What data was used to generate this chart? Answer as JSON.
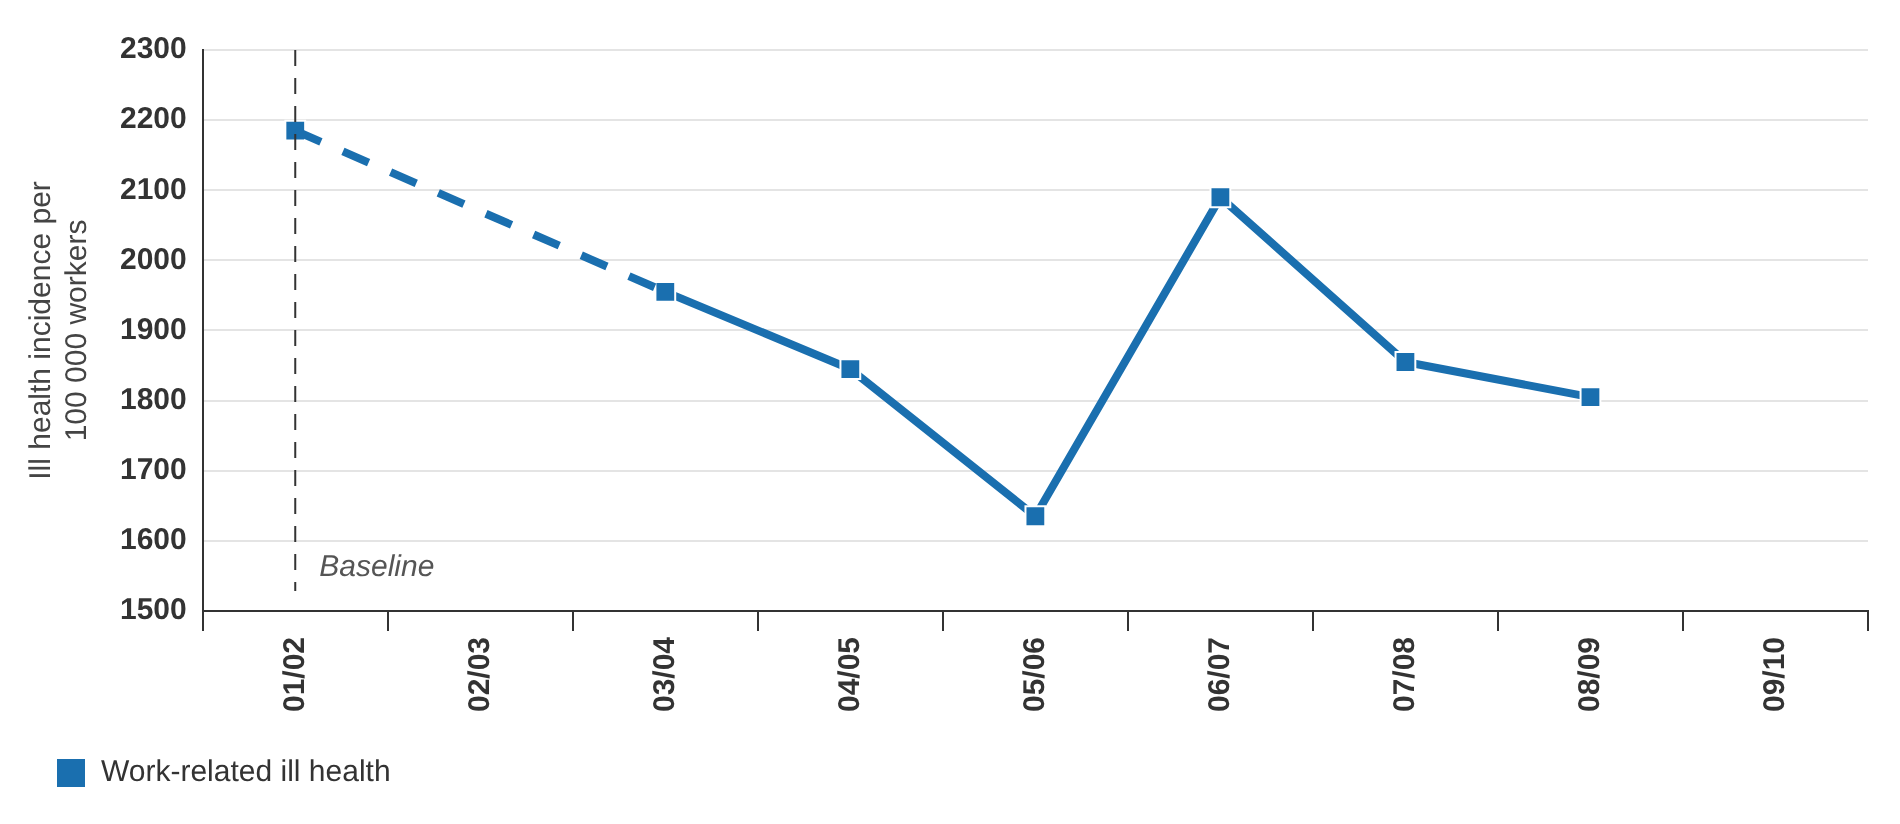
{
  "chart_data": {
    "type": "line",
    "ylabel": "Ill health incidence per 100 000 workers",
    "categories": [
      "01/02",
      "02/03",
      "03/04",
      "04/05",
      "05/06",
      "06/07",
      "07/08",
      "08/09",
      "09/10"
    ],
    "series": [
      {
        "name": "Work-related ill health",
        "color": "#1a6faf",
        "values": [
          2185,
          null,
          1955,
          1845,
          1635,
          2090,
          1855,
          1805,
          null
        ]
      }
    ],
    "ylim": [
      1500,
      2300
    ],
    "yticks": [
      1500,
      1600,
      1700,
      1800,
      1900,
      2000,
      2100,
      2200,
      2300
    ],
    "ref_lines": [
      {
        "axis": "x",
        "value": "01/02",
        "label": "Baseline",
        "line_style": "dashed",
        "color": "#333333"
      }
    ],
    "grid": "y",
    "legend": "bottom left",
    "marker": "square",
    "line_style": "solid"
  }
}
